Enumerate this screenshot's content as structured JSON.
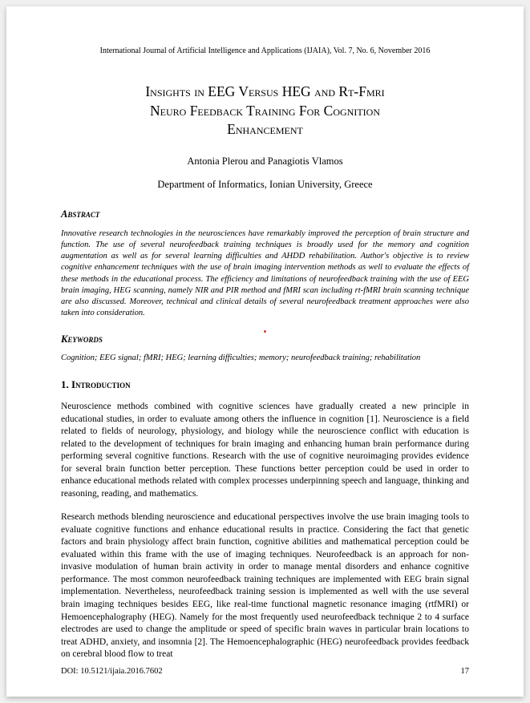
{
  "journal_header": "International Journal of Artificial Intelligence and Applications (IJAIA), Vol. 7, No. 6, November 2016",
  "title_line1": "Insights in EEG Versus HEG and Rt-Fmri",
  "title_line2": "Neuro Feedback Training For Cognition",
  "title_line3": "Enhancement",
  "authors": "Antonia Plerou and Panagiotis Vlamos",
  "affiliation": "Department of Informatics, Ionian University, Greece",
  "abstract_heading": "Abstract",
  "abstract_text": "Innovative research technologies in the neurosciences have remarkably improved the perception of brain structure and function. The use of several neurofeedback training techniques is broadly used for the memory and cognition augmentation as well as for several learning difficulties and AHDD rehabilitation. Author's objective is to review cognitive enhancement techniques with the use of brain imaging intervention methods as well to evaluate the effects of these methods in the educational process. The efficiency and limitations of neurofeedback training with the use of EEG brain imaging, HEG scanning, namely NIR and PIR method and fMRI scan including rt-fMRI brain scanning technique are also discussed. Moreover, technical and clinical details of several neurofeedback treatment approaches were also taken into consideration.",
  "keywords_heading": "Keywords",
  "keywords_text": "Cognition; EEG signal; fMRI; HEG; learning difficulties; memory; neurofeedback training; rehabilitation",
  "intro_heading": "1. Introduction",
  "intro_para1": "Neuroscience methods combined with cognitive sciences have gradually created a new principle in educational studies, in order to evaluate among others the influence in cognition [1]. Neuroscience is a field related to fields of neurology, physiology, and biology while the neuroscience conflict with education is related to the development of techniques for brain imaging and enhancing human brain performance during performing several cognitive functions. Research with the use of cognitive neuroimaging provides evidence for several brain function better perception. These functions better perception could be used in order to enhance educational methods related with complex processes underpinning speech and language, thinking and reasoning, reading, and mathematics.",
  "intro_para2": "Research methods blending neuroscience and educational perspectives involve the use brain imaging tools to evaluate cognitive functions and enhance educational results in practice. Considering the fact that genetic factors and brain physiology affect brain function, cognitive abilities and mathematical perception could be evaluated within this frame with the use of imaging techniques. Neurofeedback is an approach for non-invasive modulation of human brain activity in order to manage mental disorders and enhance cognitive performance. The most common neurofeedback training techniques are implemented with EEG brain signal implementation. Nevertheless, neurofeedback training session is implemented as well with the use several brain imaging techniques besides EEG, like real-time functional magnetic resonance imaging (rtfMRI) or Hemoencephalography (HEG). Namely for the most frequently used neurofeedback technique 2 to 4 surface electrodes are used to change the amplitude or speed of specific brain waves in particular brain locations to treat ADHD, anxiety, and insomnia [2]. The Hemoencephalographic (HEG) neurofeedback provides feedback on cerebral blood flow to treat",
  "doi": "DOI: 10.5121/ijaia.2016.7602",
  "page_number": "17",
  "colors": {
    "text": "#000000",
    "background": "#ffffff",
    "red_dot": "#d93a2b"
  }
}
